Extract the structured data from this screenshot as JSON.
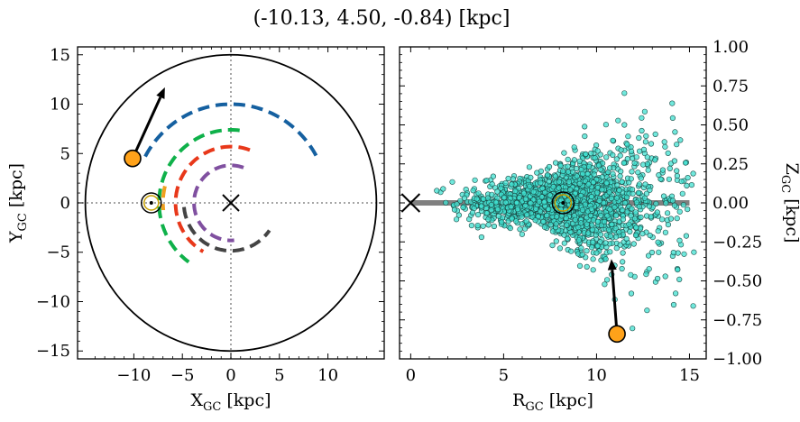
{
  "figure": {
    "title": "(-10.13, 4.50, -0.84) [kpc]"
  },
  "chart_data": [
    {
      "type": "scatter",
      "panel": "left",
      "xlabel_main": "X",
      "xlabel_sub": "GC",
      "xlabel_unit": " [kpc]",
      "ylabel_main": "Y",
      "ylabel_sub": "GC",
      "ylabel_unit": " [kpc]",
      "xlim": [
        -15.8,
        15.8
      ],
      "ylim": [
        -15.8,
        15.8
      ],
      "xticks": [
        -10,
        -5,
        0,
        5,
        10
      ],
      "yticks": [
        15,
        10,
        5,
        0,
        -5,
        -10,
        -15
      ],
      "xticklabels": [
        "−10",
        "−5",
        "0",
        "5",
        "10"
      ],
      "yticklabels": [
        "15",
        "10",
        "5",
        "0",
        "−5",
        "−10",
        "−15"
      ],
      "outer_circle_radius": 15,
      "spiral_arms": [
        {
          "color": "#1560a0",
          "radius": 10.0,
          "angle_start": 152,
          "angle_end": 28
        },
        {
          "color": "#0fb14a",
          "radius": 7.4,
          "angle_start": 83,
          "angle_end": 234
        },
        {
          "color": "#f0a020",
          "radius": 7.0,
          "angle_start": 166,
          "angle_end": 186
        },
        {
          "color": "#e8381a",
          "radius": 5.7,
          "angle_start": 70,
          "angle_end": 240
        },
        {
          "color": "#8050a0",
          "radius": 3.8,
          "angle_start": 70,
          "angle_end": 275
        },
        {
          "color": "#444444",
          "radius": 4.85,
          "angle_start": 185,
          "angle_end": 325
        }
      ],
      "galactic_center": {
        "x": 0,
        "y": 0,
        "marker": "x"
      },
      "sun": {
        "x": -8.2,
        "y": 0.0,
        "marker": "sun"
      },
      "object": {
        "x": -10.13,
        "y": 4.5,
        "color": "#ffa21a"
      },
      "velocity_arrow": {
        "x0": -10.13,
        "y0": 4.5,
        "x1": -6.8,
        "y1": 11.7
      }
    },
    {
      "type": "scatter",
      "panel": "right",
      "xlabel_main": "R",
      "xlabel_sub": "GC",
      "xlabel_unit": " [kpc]",
      "ylabel_main": "Z",
      "ylabel_sub": "GC",
      "ylabel_unit": " [kpc]",
      "xlim": [
        -0.6,
        15.9
      ],
      "ylim": [
        -1.0,
        1.0
      ],
      "xticks": [
        0,
        5,
        10,
        15
      ],
      "yticks": [
        1.0,
        0.75,
        0.5,
        0.25,
        0.0,
        -0.25,
        -0.5,
        -0.75,
        -1.0
      ],
      "xticklabels": [
        "0",
        "5",
        "10",
        "15"
      ],
      "yticklabels": [
        "1.00",
        "0.75",
        "0.50",
        "0.25",
        "0.00",
        "−0.25",
        "−0.50",
        "−0.75",
        "−1.00"
      ],
      "point_color": "#40e0d0",
      "point_count": 1800,
      "disk_line": {
        "x0": 0,
        "x1": 15,
        "y": 0,
        "color": "#808080"
      },
      "galactic_center": {
        "x": 0,
        "y": 0,
        "marker": "x"
      },
      "sun": {
        "x": 8.2,
        "y": 0.0,
        "marker": "sun"
      },
      "object": {
        "x": 11.1,
        "y": -0.84,
        "color": "#ffa21a"
      },
      "velocity_arrow": {
        "x0": 11.1,
        "y0": -0.84,
        "x1": 10.8,
        "y1": -0.36
      }
    }
  ]
}
